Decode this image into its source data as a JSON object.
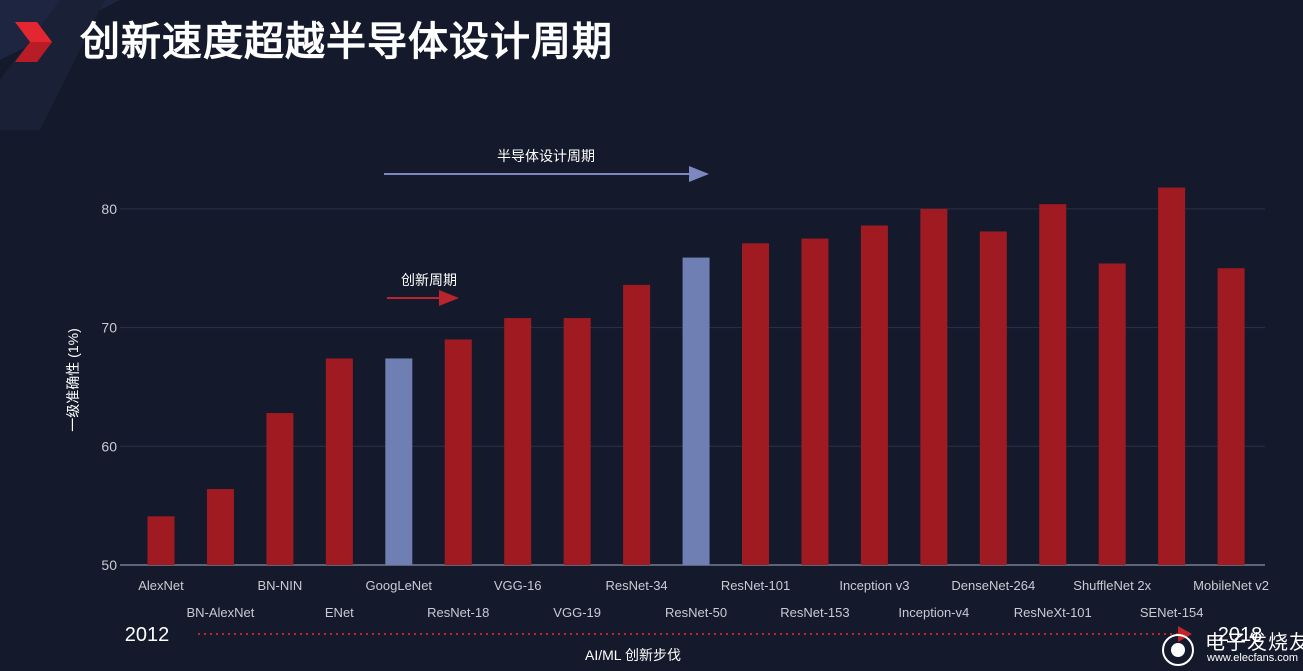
{
  "slide": {
    "title": "创新速度超越半导体设计周期",
    "colors": {
      "background": "#141a2b",
      "accent_red": "#e3262f",
      "bar_red": "#a01a21",
      "bar_blue": "#6f7eb3",
      "arrow_blue": "#7d88c0",
      "arrow_red": "#b8252c"
    }
  },
  "chart_data": {
    "type": "bar",
    "ylabel": "一级准确性 (1%)",
    "xlabel": "AI/ML 创新步伐",
    "ylim": [
      50,
      85
    ],
    "yticks": [
      50,
      60,
      70,
      80
    ],
    "grid": true,
    "categories": [
      "AlexNet",
      "BN-AlexNet",
      "BN-NIN",
      "ENet",
      "GoogLeNet",
      "ResNet-18",
      "VGG-16",
      "VGG-19",
      "ResNet-34",
      "ResNet-50",
      "ResNet-101",
      "ResNet-153",
      "Inception v3",
      "Inception-v4",
      "DenseNet-264",
      "ResNeXt-101",
      "ShuffleNet 2x",
      "SENet-154",
      "MobileNet v2"
    ],
    "values": [
      54.1,
      56.4,
      62.8,
      67.4,
      67.4,
      69.0,
      70.8,
      70.8,
      73.6,
      75.9,
      77.1,
      77.5,
      78.6,
      80.0,
      78.1,
      80.4,
      75.4,
      81.8,
      75.0
    ],
    "highlighted": [
      "GoogLeNet",
      "ResNet-50"
    ],
    "annotations": {
      "design_cycle": "半导体设计周期",
      "innovation_cycle": "创新周期",
      "year_start": "2012",
      "year_end": "2018"
    }
  },
  "watermark": {
    "brand": "电子发烧友",
    "url": "www.elecfans.com"
  }
}
